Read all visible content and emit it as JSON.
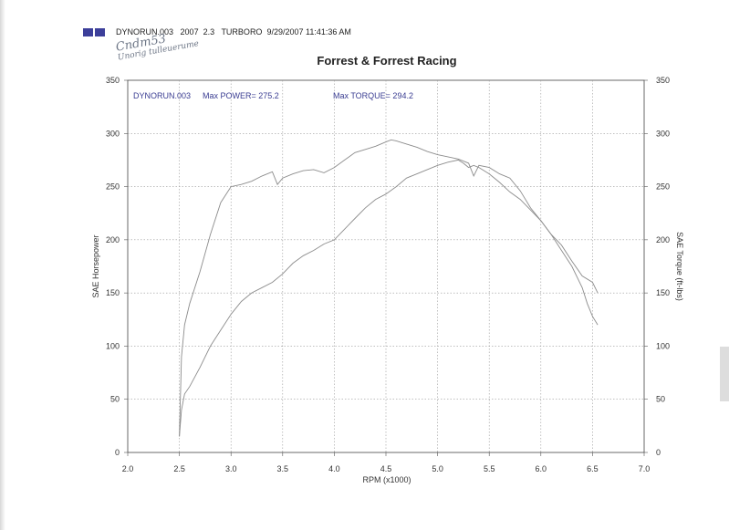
{
  "header": {
    "file": "DYNORUN.003",
    "version": "2007  2.3",
    "program": "TURBORO",
    "datetime": "9/29/2007 11:41:36 AM"
  },
  "handwriting": {
    "line1": "Cndm53",
    "line2": "Unorig tulleuerume"
  },
  "chart_data": {
    "type": "line",
    "title": "Forrest & Forrest Racing",
    "xlabel": "RPM (x1000)",
    "ylabel": "SAE Horsepower",
    "ylabel_right": "SAE Torque (ft-lbs)",
    "xlim": [
      2.0,
      7.0
    ],
    "ylim": [
      0,
      350
    ],
    "ylim_right": [
      0,
      350
    ],
    "x_ticks": [
      "2.0",
      "2.5",
      "3.0",
      "3.5",
      "4.0",
      "4.5",
      "5.0",
      "5.5",
      "6.0",
      "6.5",
      "7.0"
    ],
    "y_ticks": [
      "0",
      "50",
      "100",
      "150",
      "200",
      "250",
      "300",
      "350"
    ],
    "grid": true,
    "annotations": {
      "run": "DYNORUN.003",
      "max_power": "Max POWER= 275.2",
      "max_torque": "Max TORQUE= 294.2"
    },
    "series": [
      {
        "axis": "left",
        "x": [
          2.5,
          2.52,
          2.55,
          2.6,
          2.7,
          2.8,
          2.9,
          3.0,
          3.1,
          3.2,
          3.3,
          3.4,
          3.5,
          3.6,
          3.7,
          3.8,
          3.9,
          4.0,
          4.1,
          4.2,
          4.3,
          4.4,
          4.5,
          4.6,
          4.7,
          4.8,
          4.9,
          5.0,
          5.1,
          5.2,
          5.25,
          5.3,
          5.35,
          5.4,
          5.5,
          5.6,
          5.7,
          5.8,
          5.9,
          6.0,
          6.1,
          6.2,
          6.3,
          6.4,
          6.45,
          6.5,
          6.55
        ],
        "values": [
          15,
          40,
          55,
          62,
          80,
          100,
          115,
          130,
          142,
          150,
          155,
          160,
          168,
          178,
          185,
          190,
          196,
          200,
          210,
          220,
          230,
          238,
          243,
          250,
          258,
          262,
          266,
          270,
          273,
          275,
          272,
          268,
          270,
          268,
          262,
          254,
          245,
          238,
          228,
          218,
          205,
          190,
          175,
          155,
          140,
          128,
          120
        ]
      },
      {
        "axis": "right",
        "x": [
          2.5,
          2.52,
          2.55,
          2.6,
          2.7,
          2.8,
          2.9,
          3.0,
          3.1,
          3.2,
          3.3,
          3.4,
          3.45,
          3.5,
          3.6,
          3.7,
          3.8,
          3.9,
          4.0,
          4.1,
          4.2,
          4.3,
          4.4,
          4.5,
          4.55,
          4.6,
          4.7,
          4.8,
          4.9,
          5.0,
          5.1,
          5.2,
          5.3,
          5.35,
          5.4,
          5.5,
          5.6,
          5.7,
          5.8,
          5.9,
          6.0,
          6.1,
          6.2,
          6.3,
          6.4,
          6.5,
          6.55
        ],
        "values": [
          15,
          90,
          120,
          140,
          170,
          205,
          235,
          250,
          252,
          255,
          260,
          264,
          252,
          258,
          262,
          265,
          266,
          263,
          268,
          275,
          282,
          285,
          288,
          292,
          294,
          293,
          290,
          287,
          283,
          280,
          278,
          276,
          272,
          260,
          270,
          268,
          262,
          258,
          246,
          230,
          218,
          205,
          195,
          180,
          166,
          160,
          150
        ]
      }
    ]
  }
}
